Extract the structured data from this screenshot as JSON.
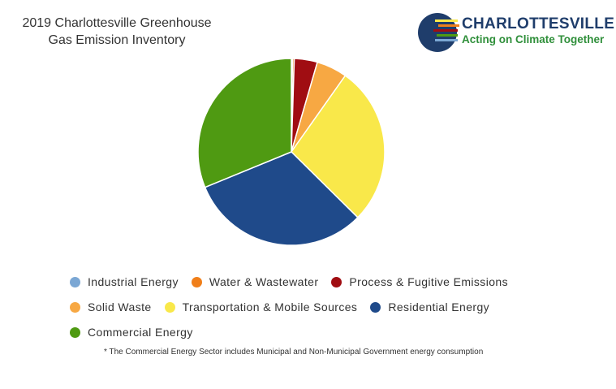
{
  "chart_data": {
    "type": "pie",
    "title": "2019 Charlottesville Greenhouse Gas Emission Inventory",
    "categories": [
      "Industrial Energy",
      "Water & Wastewater",
      "Process & Fugitive Emissions",
      "Solid Waste",
      "Transportation & Mobile Sources",
      "Residential Energy",
      "Commercial Energy"
    ],
    "values": [
      0.2,
      0.3,
      4,
      5.3,
      27.6,
      31.4,
      31.2
    ],
    "colors": [
      "#7ba7d4",
      "#f07f1a",
      "#a00d12",
      "#f7a843",
      "#f9e84a",
      "#1f4a8a",
      "#4f9a12"
    ],
    "note": "* The Commercial Energy Sector includes Municipal and Non-Municipal Government energy consumption"
  },
  "logo": {
    "name": "CHARLOTTESVILLE",
    "tagline": "Acting on Climate Together"
  }
}
